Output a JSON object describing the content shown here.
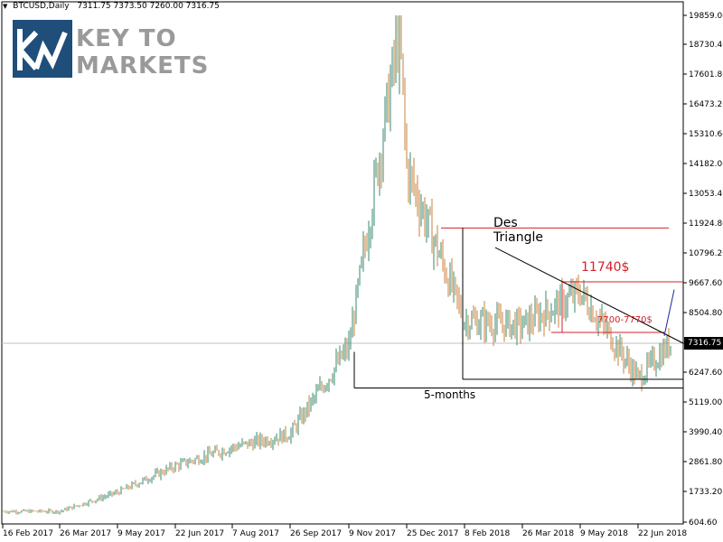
{
  "header": {
    "symbol": "BTCUSD,Daily",
    "ohlc": "7311.75 7373.50 7260.00 7316.75"
  },
  "logo": {
    "line1": "KEY TO",
    "line2": "MARKETS"
  },
  "current_price": "7316.75",
  "annotations": {
    "pattern": "Des\nTriangle",
    "target": "11740$",
    "zone": "7700-7770$",
    "base": "5-months"
  },
  "colors": {
    "bull": "#3a8a6e",
    "bear": "#c8823c",
    "resistance": "#d2232a",
    "trend": "#000000",
    "projection": "#1a2a9a",
    "price_line": "#c0c0c0"
  },
  "chart_data": {
    "type": "candlestick",
    "title": "",
    "ylim": [
      604.6,
      20200
    ],
    "y_ticks": [
      "19859.00",
      "18730.40",
      "17601.80",
      "16473.20",
      "15310.60",
      "14182.00",
      "13053.40",
      "11924.80",
      "10796.20",
      "9667.60",
      "8504.80",
      "7316.75",
      "6247.60",
      "5119.00",
      "3990.40",
      "2861.80",
      "1733.20",
      "604.60"
    ],
    "x_ticks": [
      "16 Feb 2017",
      "26 Mar 2017",
      "9 May 2017",
      "22 Jun 2017",
      "7 Aug 2017",
      "26 Sep 2017",
      "9 Nov 2017",
      "25 Dec 2017",
      "8 Feb 2018",
      "26 Mar 2018",
      "9 May 2018",
      "22 Jun 2018"
    ],
    "approx_closes": [
      {
        "date": "16 Feb 2017",
        "close": 1000
      },
      {
        "date": "26 Mar 2017",
        "close": 1000
      },
      {
        "date": "9 May 2017",
        "close": 1700
      },
      {
        "date": "22 Jun 2017",
        "close": 2700
      },
      {
        "date": "7 Aug 2017",
        "close": 3400
      },
      {
        "date": "26 Sep 2017",
        "close": 3900
      },
      {
        "date": "9 Nov 2017",
        "close": 7200
      },
      {
        "date": "17 Dec 2017",
        "close": 19300
      },
      {
        "date": "25 Dec 2017",
        "close": 14000
      },
      {
        "date": "8 Feb 2018",
        "close": 8200
      },
      {
        "date": "26 Mar 2018",
        "close": 8000
      },
      {
        "date": "9 May 2018",
        "close": 9300
      },
      {
        "date": "22 Jun 2018",
        "close": 6000
      },
      {
        "date": "16 Jul 2018",
        "close": 7316.75
      }
    ],
    "levels": {
      "resistance_top": 11740,
      "target": 9700,
      "zone": 7735,
      "support_a": 5980,
      "support_b": 5650
    }
  }
}
